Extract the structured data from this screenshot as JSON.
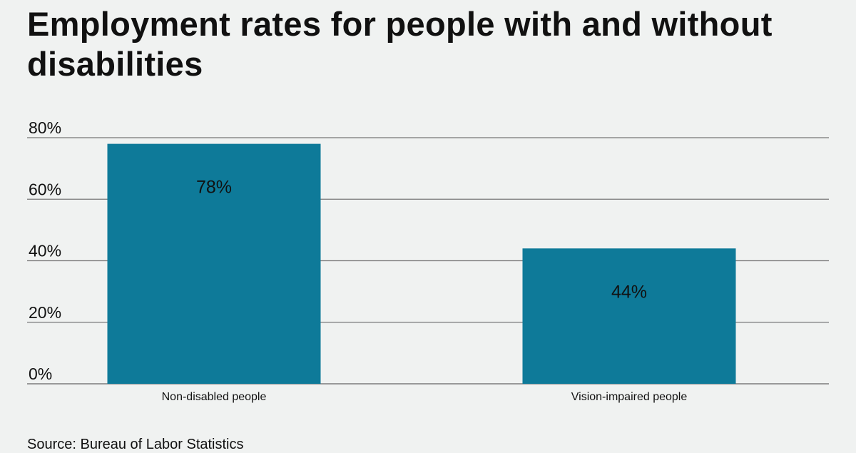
{
  "chart_data": {
    "type": "bar",
    "title": "Employment rates for people with and without disabilities",
    "categories": [
      "Non-disabled people",
      "Vision-impaired people"
    ],
    "values": [
      78,
      44
    ],
    "data_labels": [
      "78%",
      "44%"
    ],
    "yticks": [
      "0%",
      "20%",
      "40%",
      "60%",
      "80%"
    ],
    "ytick_values": [
      0,
      20,
      40,
      60,
      80
    ],
    "ylim": [
      0,
      80
    ],
    "grid": true,
    "bar_color": "#0e7a99",
    "source": "Source: Bureau of Labor Statistics"
  }
}
